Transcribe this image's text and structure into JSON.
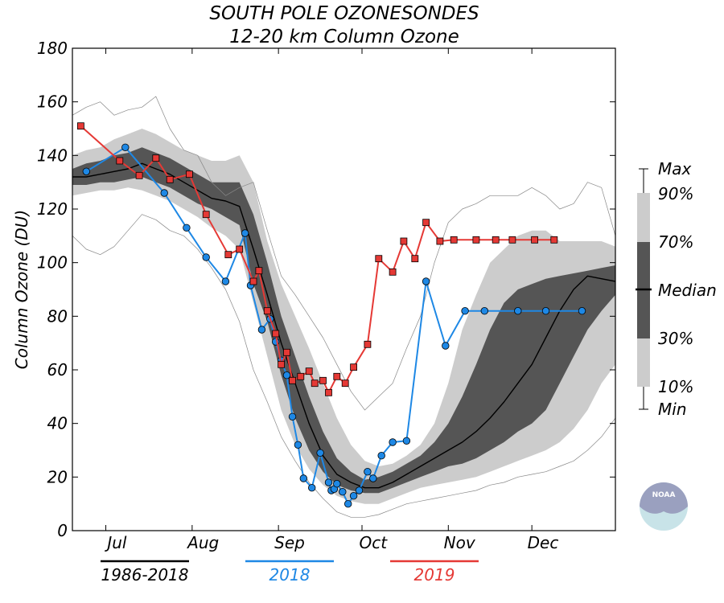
{
  "chart_data": {
    "type": "line",
    "title": "SOUTH POLE OZONESONDES",
    "subtitle": "12-20 km Column Ozone",
    "ylabel": "Column Ozone (DU)",
    "ylim": [
      0,
      180
    ],
    "yticks": [
      "0",
      "20",
      "40",
      "60",
      "80",
      "100",
      "120",
      "140",
      "160",
      "180"
    ],
    "xlim": [
      170,
      365
    ],
    "month_labels": [
      {
        "label": "Jul",
        "day": 186
      },
      {
        "label": "Aug",
        "day": 217
      },
      {
        "label": "Sep",
        "day": 248
      },
      {
        "label": "Oct",
        "day": 278
      },
      {
        "label": "Nov",
        "day": 309
      },
      {
        "label": "Dec",
        "day": 339
      }
    ],
    "climatology": {
      "name": "1986-2018",
      "day": [
        170,
        175,
        180,
        185,
        190,
        195,
        200,
        205,
        210,
        215,
        220,
        225,
        230,
        235,
        240,
        245,
        250,
        255,
        260,
        265,
        270,
        275,
        280,
        285,
        290,
        295,
        300,
        305,
        310,
        315,
        320,
        325,
        330,
        335,
        340,
        345,
        350,
        355,
        360,
        365
      ],
      "max": [
        155,
        158,
        160,
        155,
        157,
        158,
        162,
        150,
        142,
        140,
        130,
        125,
        128,
        130,
        112,
        95,
        88,
        80,
        72,
        62,
        52,
        45,
        50,
        55,
        68,
        80,
        100,
        115,
        120,
        122,
        125,
        125,
        125,
        128,
        125,
        120,
        122,
        130,
        128,
        110
      ],
      "p90": [
        140,
        142,
        143,
        146,
        148,
        150,
        148,
        145,
        142,
        140,
        138,
        138,
        140,
        130,
        108,
        92,
        80,
        68,
        55,
        42,
        32,
        26,
        24,
        25,
        28,
        32,
        40,
        55,
        75,
        88,
        100,
        105,
        110,
        112,
        112,
        108,
        108,
        108,
        108,
        106
      ],
      "p70": [
        135,
        137,
        138,
        140,
        141,
        143,
        141,
        139,
        136,
        133,
        130,
        130,
        130,
        118,
        100,
        80,
        65,
        50,
        37,
        27,
        22,
        19,
        20,
        22,
        25,
        28,
        33,
        40,
        50,
        62,
        75,
        85,
        90,
        92,
        94,
        95,
        96,
        97,
        98,
        99
      ],
      "median": [
        132,
        132,
        133,
        134,
        135,
        137,
        135,
        133,
        130,
        127,
        124,
        123,
        121,
        105,
        88,
        70,
        55,
        40,
        28,
        21,
        18,
        16,
        16,
        18,
        21,
        24,
        27,
        30,
        33,
        37,
        42,
        48,
        55,
        62,
        72,
        82,
        90,
        95,
        94,
        93
      ],
      "p30": [
        129,
        129,
        130,
        130,
        131,
        132,
        130,
        128,
        125,
        122,
        120,
        117,
        114,
        92,
        78,
        58,
        42,
        30,
        22,
        17,
        15,
        14,
        14,
        16,
        18,
        20,
        22,
        24,
        25,
        27,
        30,
        33,
        37,
        40,
        45,
        55,
        65,
        75,
        82,
        88
      ],
      "p10": [
        125,
        126,
        127,
        127,
        128,
        127,
        125,
        123,
        120,
        117,
        113,
        110,
        105,
        85,
        65,
        45,
        32,
        23,
        17,
        13,
        11,
        10,
        10,
        12,
        14,
        16,
        17,
        18,
        19,
        20,
        22,
        24,
        26,
        28,
        30,
        33,
        38,
        45,
        55,
        62
      ],
      "min": [
        110,
        105,
        103,
        106,
        112,
        118,
        116,
        112,
        110,
        105,
        98,
        90,
        78,
        60,
        48,
        35,
        26,
        18,
        12,
        7,
        5,
        5,
        6,
        8,
        10,
        11,
        12,
        13,
        14,
        15,
        17,
        18,
        20,
        21,
        22,
        24,
        26,
        30,
        35,
        42
      ]
    },
    "series": [
      {
        "name": "2018",
        "color": "#1e88e5",
        "x": [
          175,
          189,
          203,
          211,
          218,
          225,
          232,
          234,
          238,
          241,
          243,
          245,
          247,
          249,
          251,
          253,
          256,
          259,
          262,
          263,
          264,
          265,
          267,
          269,
          271,
          273,
          276,
          278,
          281,
          285,
          290,
          297,
          304,
          311,
          318,
          330,
          340,
          353
        ],
        "y": [
          134,
          143,
          126,
          113,
          102,
          93,
          111,
          91.5,
          75,
          79,
          70.5,
          63.5,
          58,
          42.5,
          32,
          19.5,
          16,
          29,
          18,
          15,
          15.5,
          17.5,
          14.5,
          10,
          13,
          15,
          22,
          19.5,
          28,
          33,
          33.5,
          93,
          69,
          82,
          82,
          82,
          82,
          82
        ]
      },
      {
        "name": "2019",
        "color": "#e53935",
        "x": [
          173,
          187,
          194,
          200,
          205,
          212,
          218,
          226,
          230,
          235,
          237,
          240,
          243,
          245,
          247,
          249,
          252,
          255,
          257,
          260,
          262,
          265,
          268,
          271,
          276,
          280,
          285,
          289,
          293,
          297,
          302,
          307,
          315,
          322,
          328,
          336,
          343
        ],
        "y": [
          151,
          138,
          132.5,
          139,
          131,
          133,
          118,
          103,
          105,
          93,
          97,
          82,
          73.5,
          62,
          66.5,
          56,
          57.5,
          59.5,
          55,
          56,
          51.5,
          57.5,
          55,
          61,
          69.5,
          101.5,
          96.5,
          108,
          101.5,
          115,
          108,
          108.5,
          108.5,
          108.5,
          108.5,
          108.5,
          108.5
        ]
      }
    ],
    "key_labels": {
      "max": "Max",
      "p90": "90%",
      "p70": "70%",
      "median": "Median",
      "p30": "30%",
      "p10": "10%",
      "min": "Min"
    },
    "legend": [
      {
        "label": "1986-2018",
        "color": "#000000"
      },
      {
        "label": "2018",
        "color": "#1e88e5"
      },
      {
        "label": "2019",
        "color": "#e53935"
      }
    ],
    "logo": {
      "text": "NOAA"
    },
    "colors": {
      "band_outer": "#cccccc",
      "band_inner": "#555555",
      "median": "#000000",
      "envelope": "#888888"
    },
    "grid": false
  }
}
